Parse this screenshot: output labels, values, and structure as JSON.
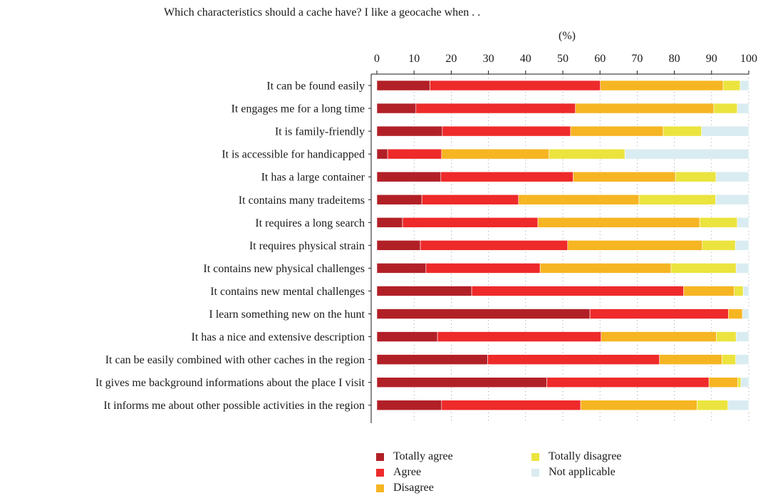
{
  "chart_data": {
    "type": "bar",
    "orientation": "horizontal",
    "stacked": true,
    "title": "Which characteristics should a cache have? I like a geocache when . .",
    "axis_unit": "(%)",
    "xlim": [
      0,
      100
    ],
    "x_ticks": [
      "0",
      "10",
      "20",
      "30",
      "40",
      "50",
      "60",
      "70",
      "80",
      "90",
      "100"
    ],
    "grid": "dotted vertical",
    "legend_position": "bottom",
    "categories": [
      "It can be found easily",
      "It engages me for a long time",
      "It is family-friendly",
      "It is accessible for handicapped",
      "It has a large container",
      "It contains many tradeitems",
      "It requires a long search",
      "It requires physical strain",
      "It contains new physical challenges",
      "It contains new mental challenges",
      "I learn something new on the hunt",
      "It has a nice and extensive description",
      "It can be easily combined with other caches in the region",
      "It gives me background informations about the place I visit",
      "It informs me about other possible activities in the region"
    ],
    "series": [
      {
        "name": "Totally agree",
        "color": "#b22027",
        "values": [
          14.3,
          10.5,
          17.6,
          2.9,
          17.2,
          12.1,
          6.9,
          11.7,
          13.2,
          25.5,
          57.3,
          16.3,
          29.8,
          45.7,
          17.4
        ]
      },
      {
        "name": "Agree",
        "color": "#ee2a2a",
        "values": [
          45.8,
          42.9,
          34.5,
          14.5,
          35.6,
          26.0,
          36.4,
          39.6,
          30.7,
          57.0,
          37.2,
          44.0,
          46.2,
          43.6,
          37.4
        ]
      },
      {
        "name": "Disagree",
        "color": "#f6b522",
        "values": [
          33.0,
          37.2,
          24.9,
          28.9,
          27.5,
          32.4,
          43.5,
          36.2,
          35.2,
          13.6,
          3.8,
          31.0,
          16.8,
          7.7,
          31.3
        ]
      },
      {
        "name": "Totally disagree",
        "color": "#ebe43e",
        "values": [
          4.6,
          6.3,
          10.3,
          20.4,
          10.9,
          20.6,
          10.1,
          8.9,
          17.5,
          2.4,
          0.0,
          5.3,
          3.7,
          0.9,
          8.3
        ]
      },
      {
        "name": "Not applicable",
        "color": "#d9ecf1",
        "values": [
          2.3,
          3.1,
          12.7,
          33.3,
          8.8,
          8.9,
          3.1,
          3.6,
          3.4,
          1.5,
          1.7,
          3.4,
          3.5,
          2.1,
          5.6
        ]
      }
    ]
  },
  "legend": {
    "col1": [
      "Totally agree",
      "Agree",
      "Disagree"
    ],
    "col2": [
      "Totally disagree",
      "Not applicable"
    ]
  }
}
